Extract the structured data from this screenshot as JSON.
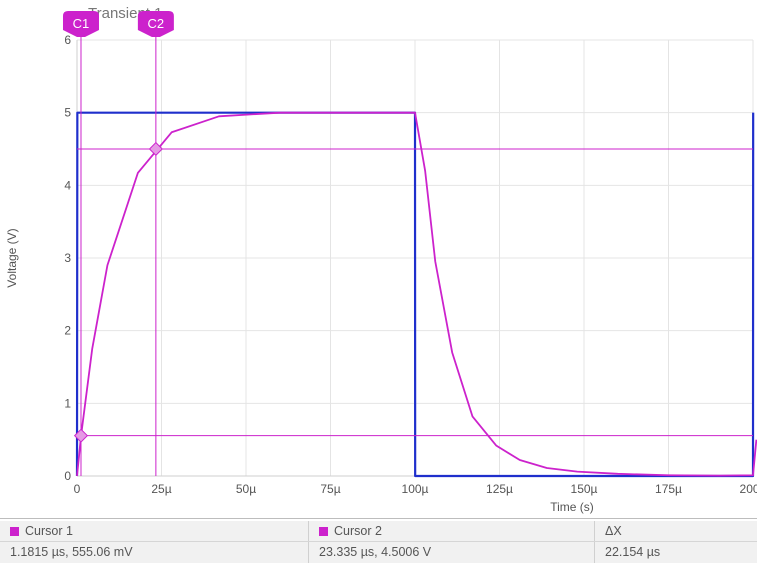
{
  "chart_data": {
    "type": "line",
    "title": "Transient 1",
    "xlabel": "Time (s)",
    "ylabel": "Voltage (V)",
    "xlim": [
      0,
      200
    ],
    "ylim": [
      0,
      6
    ],
    "x_ticks": [
      0,
      25,
      50,
      75,
      100,
      125,
      150,
      175,
      200
    ],
    "x_tick_labels": [
      "0",
      "25µ",
      "50µ",
      "75µ",
      "100µ",
      "125µ",
      "150µ",
      "175µ",
      "200µ"
    ],
    "y_ticks": [
      0,
      1,
      2,
      3,
      4,
      5,
      6
    ],
    "y_tick_labels": [
      "0",
      "1",
      "2",
      "3",
      "4",
      "5",
      "6"
    ],
    "grid": true,
    "x_unit": "µs",
    "series": [
      {
        "color": "#1f2fcc",
        "x": [
          0,
          0.1,
          100,
          100.05,
          200,
          200.05
        ],
        "y": [
          0,
          5,
          5,
          0,
          0,
          5
        ]
      },
      {
        "color": "#cc22cc",
        "x": [
          0,
          1.2,
          4.5,
          9,
          18,
          28,
          42,
          60,
          80,
          100,
          103,
          106,
          111,
          117,
          124,
          131,
          139,
          148,
          160,
          175,
          190,
          200,
          201
        ],
        "y": [
          0,
          0.555,
          1.75,
          2.9,
          4.17,
          4.73,
          4.95,
          5.0,
          5.0,
          5.0,
          4.2,
          2.95,
          1.7,
          0.82,
          0.42,
          0.22,
          0.11,
          0.06,
          0.03,
          0.01,
          0.005,
          0.01,
          0.5
        ]
      }
    ],
    "cursors": [
      {
        "label": "C1",
        "x": 1.1815,
        "y": 0.55506,
        "color": "#cc22cc"
      },
      {
        "label": "C2",
        "x": 23.335,
        "y": 4.5006,
        "color": "#cc22cc"
      }
    ]
  },
  "cursor_table": {
    "headers": [
      "Cursor 1",
      "Cursor 2",
      "ΔX"
    ],
    "values": [
      "1.1815 µs, 555.06 mV",
      "23.335 µs, 4.5006 V",
      "22.154 µs"
    ],
    "swatch_color": "#cc22cc"
  }
}
